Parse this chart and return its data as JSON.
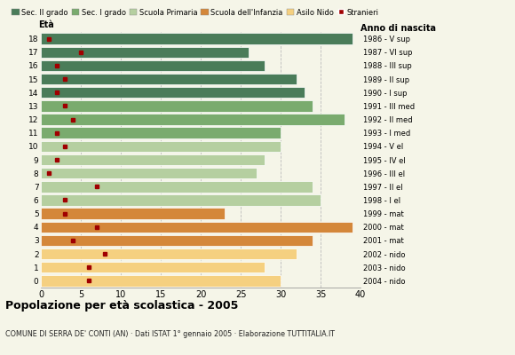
{
  "ages": [
    0,
    1,
    2,
    3,
    4,
    5,
    6,
    7,
    8,
    9,
    10,
    11,
    12,
    13,
    14,
    15,
    16,
    17,
    18
  ],
  "birth_years": [
    "2004 - nido",
    "2003 - nido",
    "2002 - nido",
    "2001 - mat",
    "2000 - mat",
    "1999 - mat",
    "1998 - I el",
    "1997 - II el",
    "1996 - III el",
    "1995 - IV el",
    "1994 - V el",
    "1993 - I med",
    "1992 - II med",
    "1991 - III med",
    "1990 - I sup",
    "1989 - II sup",
    "1988 - III sup",
    "1987 - VI sup",
    "1986 - V sup"
  ],
  "bar_values": [
    30,
    28,
    32,
    34,
    39,
    23,
    35,
    34,
    27,
    28,
    30,
    30,
    38,
    34,
    33,
    32,
    28,
    26,
    39
  ],
  "stranieri": [
    6,
    6,
    8,
    4,
    7,
    3,
    3,
    7,
    1,
    2,
    3,
    2,
    4,
    3,
    2,
    3,
    2,
    5,
    1
  ],
  "bar_colors": [
    "#f5d080",
    "#f5d080",
    "#f5d080",
    "#d4873a",
    "#d4873a",
    "#d4873a",
    "#b5cfa0",
    "#b5cfa0",
    "#b5cfa0",
    "#b5cfa0",
    "#b5cfa0",
    "#7aab6e",
    "#7aab6e",
    "#7aab6e",
    "#4a7c59",
    "#4a7c59",
    "#4a7c59",
    "#4a7c59",
    "#4a7c59"
  ],
  "categories": [
    "Sec. II grado",
    "Sec. I grado",
    "Scuola Primaria",
    "Scuola dell'Infanzia",
    "Asilo Nido"
  ],
  "category_colors": [
    "#4a7c59",
    "#7aab6e",
    "#b5cfa0",
    "#d4873a",
    "#f5d080"
  ],
  "stranieri_color": "#a00000",
  "title": "Popolazione per età scolastica - 2005",
  "subtitle": "COMUNE DI SERRA DE' CONTI (AN) · Dati ISTAT 1° gennaio 2005 · Elaborazione TUTTITALIA.IT",
  "xlabel_left": "Età",
  "xlabel_right": "Anno di nascita",
  "xlim": [
    0,
    40
  ],
  "xticks": [
    0,
    5,
    10,
    15,
    20,
    25,
    30,
    35,
    40
  ],
  "background_color": "#f5f5e8",
  "bar_height": 0.82,
  "grid_color": "#bbbbbb"
}
